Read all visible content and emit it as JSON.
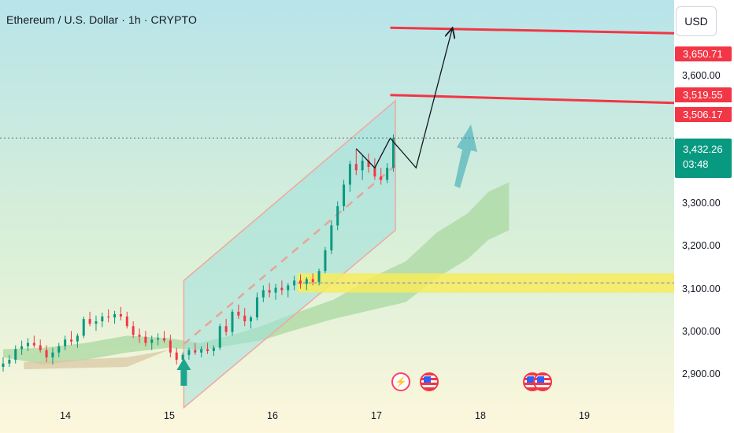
{
  "header": {
    "title": "Ethereum / U.S. Dollar · 1h · CRYPTO",
    "currency_button": "USD"
  },
  "price_labels": {
    "target_high": "3,650.71",
    "target_mid_a": "3,519.55",
    "target_mid_b": "3,506.17",
    "last_price": "3,432.26",
    "countdown": "03:48"
  },
  "colors": {
    "background_top": "#b8e4ea",
    "background_bottom": "#fdf7dc",
    "channel_fill": "#9ee0dc",
    "channel_border": "#f0a8a0",
    "resistance_line": "#f23645",
    "support_zone": "#f7ec5c",
    "candle_up": "#089981",
    "candle_down": "#f23645",
    "arrow_up": "#1ea58f"
  },
  "chart_data": {
    "type": "candlestick",
    "symbol": "Ethereum / U.S. Dollar",
    "interval": "1h",
    "y_axis": {
      "ticks": [
        "3,600.00",
        "3,300.00",
        "3,200.00",
        "3,100.00",
        "3,000.00",
        "2,900.00"
      ],
      "tick_values": [
        3600,
        3300,
        3200,
        3100,
        3000,
        2900
      ],
      "range": [
        2850,
        3720
      ]
    },
    "x_axis": {
      "ticks": [
        "14",
        "15",
        "16",
        "17",
        "18",
        "19"
      ],
      "tick_values": [
        14,
        15,
        16,
        17,
        18,
        19
      ],
      "range": [
        13.4,
        19.9
      ]
    },
    "resistance_levels": [
      3650.71,
      3512
    ],
    "support_zone": {
      "low": 3110,
      "high": 3150,
      "mid": 3130
    },
    "channel": {
      "lower": [
        [
          15.15,
          2870
        ],
        [
          17.2,
          3240
        ]
      ],
      "upper": [
        [
          15.15,
          3135
        ],
        [
          17.2,
          3510
        ]
      ]
    },
    "projection_path": [
      [
        17.15,
        3432
      ],
      [
        17.4,
        3370
      ],
      [
        17.75,
        3660
      ]
    ],
    "up_arrow_x": 15.15,
    "candles": [
      [
        13.4,
        2955,
        2975,
        2945,
        2962
      ],
      [
        13.46,
        2962,
        2980,
        2955,
        2970
      ],
      [
        13.52,
        2970,
        3000,
        2962,
        2992
      ],
      [
        13.58,
        2992,
        3010,
        2980,
        2998
      ],
      [
        13.64,
        2998,
        3015,
        2988,
        3005
      ],
      [
        13.7,
        3005,
        3020,
        2995,
        3000
      ],
      [
        13.76,
        3000,
        3012,
        2985,
        2990
      ],
      [
        13.82,
        2990,
        3000,
        2965,
        2975
      ],
      [
        13.88,
        2975,
        2995,
        2960,
        2985
      ],
      [
        13.94,
        2985,
        3005,
        2975,
        2998
      ],
      [
        14.0,
        2998,
        3020,
        2990,
        3012
      ],
      [
        14.06,
        3012,
        3030,
        3000,
        3008
      ],
      [
        14.12,
        3008,
        3025,
        2995,
        3020
      ],
      [
        14.18,
        3020,
        3060,
        3015,
        3055
      ],
      [
        14.24,
        3055,
        3070,
        3040,
        3045
      ],
      [
        14.3,
        3045,
        3062,
        3030,
        3050
      ],
      [
        14.36,
        3050,
        3068,
        3038,
        3060
      ],
      [
        14.42,
        3060,
        3075,
        3048,
        3058
      ],
      [
        14.48,
        3058,
        3072,
        3045,
        3065
      ],
      [
        14.54,
        3065,
        3080,
        3052,
        3060
      ],
      [
        14.6,
        3060,
        3070,
        3035,
        3040
      ],
      [
        14.66,
        3040,
        3050,
        3015,
        3022
      ],
      [
        14.72,
        3022,
        3035,
        3005,
        3018
      ],
      [
        14.78,
        3018,
        3030,
        2998,
        3005
      ],
      [
        14.84,
        3005,
        3020,
        2990,
        3012
      ],
      [
        14.9,
        3012,
        3025,
        3000,
        3015
      ],
      [
        14.96,
        3015,
        3030,
        3005,
        3010
      ],
      [
        15.02,
        3010,
        3022,
        2975,
        2985
      ],
      [
        15.08,
        2985,
        2995,
        2960,
        2970
      ],
      [
        15.14,
        2970,
        2985,
        2955,
        2980
      ],
      [
        15.2,
        2980,
        2995,
        2970,
        2990
      ],
      [
        15.26,
        2990,
        3005,
        2980,
        2985
      ],
      [
        15.32,
        2985,
        2998,
        2975,
        2992
      ],
      [
        15.38,
        2992,
        3005,
        2982,
        2988
      ],
      [
        15.44,
        2988,
        3000,
        2978,
        2995
      ],
      [
        15.5,
        2995,
        3045,
        2990,
        3040
      ],
      [
        15.56,
        3040,
        3055,
        3020,
        3028
      ],
      [
        15.62,
        3028,
        3075,
        3020,
        3070
      ],
      [
        15.68,
        3070,
        3085,
        3055,
        3062
      ],
      [
        15.74,
        3062,
        3078,
        3040,
        3050
      ],
      [
        15.8,
        3050,
        3062,
        3035,
        3058
      ],
      [
        15.86,
        3058,
        3110,
        3052,
        3100
      ],
      [
        15.92,
        3100,
        3125,
        3090,
        3115
      ],
      [
        15.98,
        3115,
        3130,
        3100,
        3110
      ],
      [
        16.04,
        3110,
        3128,
        3095,
        3120
      ],
      [
        16.1,
        3120,
        3135,
        3105,
        3115
      ],
      [
        16.16,
        3115,
        3130,
        3100,
        3125
      ],
      [
        16.22,
        3125,
        3145,
        3115,
        3135
      ],
      [
        16.28,
        3135,
        3148,
        3118,
        3128
      ],
      [
        16.34,
        3128,
        3142,
        3115,
        3138
      ],
      [
        16.4,
        3138,
        3150,
        3125,
        3132
      ],
      [
        16.46,
        3132,
        3160,
        3125,
        3155
      ],
      [
        16.52,
        3155,
        3205,
        3150,
        3198
      ],
      [
        16.58,
        3198,
        3260,
        3190,
        3250
      ],
      [
        16.64,
        3250,
        3300,
        3240,
        3290
      ],
      [
        16.7,
        3290,
        3345,
        3280,
        3335
      ],
      [
        16.76,
        3335,
        3385,
        3320,
        3378
      ],
      [
        16.82,
        3378,
        3410,
        3355,
        3365
      ],
      [
        16.88,
        3365,
        3395,
        3345,
        3385
      ],
      [
        16.94,
        3385,
        3400,
        3360,
        3372
      ],
      [
        17.0,
        3372,
        3390,
        3345,
        3352
      ],
      [
        17.06,
        3352,
        3370,
        3335,
        3345
      ],
      [
        17.12,
        3345,
        3380,
        3338,
        3370
      ],
      [
        17.18,
        3370,
        3440,
        3362,
        3432
      ]
    ],
    "cloud_upper": [
      [
        13.4,
        2992
      ],
      [
        13.8,
        2995
      ],
      [
        14.2,
        3005
      ],
      [
        14.6,
        3020
      ],
      [
        15.0,
        3015
      ],
      [
        15.3,
        3005
      ],
      [
        15.6,
        3020
      ],
      [
        15.9,
        3040
      ],
      [
        16.2,
        3065
      ],
      [
        16.6,
        3095
      ],
      [
        17.0,
        3145
      ],
      [
        17.3,
        3175
      ],
      [
        17.6,
        3235
      ],
      [
        17.9,
        3275
      ],
      [
        18.1,
        3320
      ],
      [
        18.3,
        3340
      ]
    ],
    "cloud_lower": [
      [
        13.4,
        2975
      ],
      [
        13.8,
        2960
      ],
      [
        14.2,
        2970
      ],
      [
        14.6,
        2985
      ],
      [
        15.0,
        2995
      ],
      [
        15.3,
        2990
      ],
      [
        15.6,
        3000
      ],
      [
        15.9,
        3010
      ],
      [
        16.2,
        3030
      ],
      [
        16.6,
        3055
      ],
      [
        17.0,
        3075
      ],
      [
        17.3,
        3090
      ],
      [
        17.6,
        3140
      ],
      [
        17.9,
        3180
      ],
      [
        18.1,
        3220
      ],
      [
        18.3,
        3240
      ]
    ],
    "event_markers": [
      17.25,
      17.5,
      18.5,
      18.6
    ]
  }
}
